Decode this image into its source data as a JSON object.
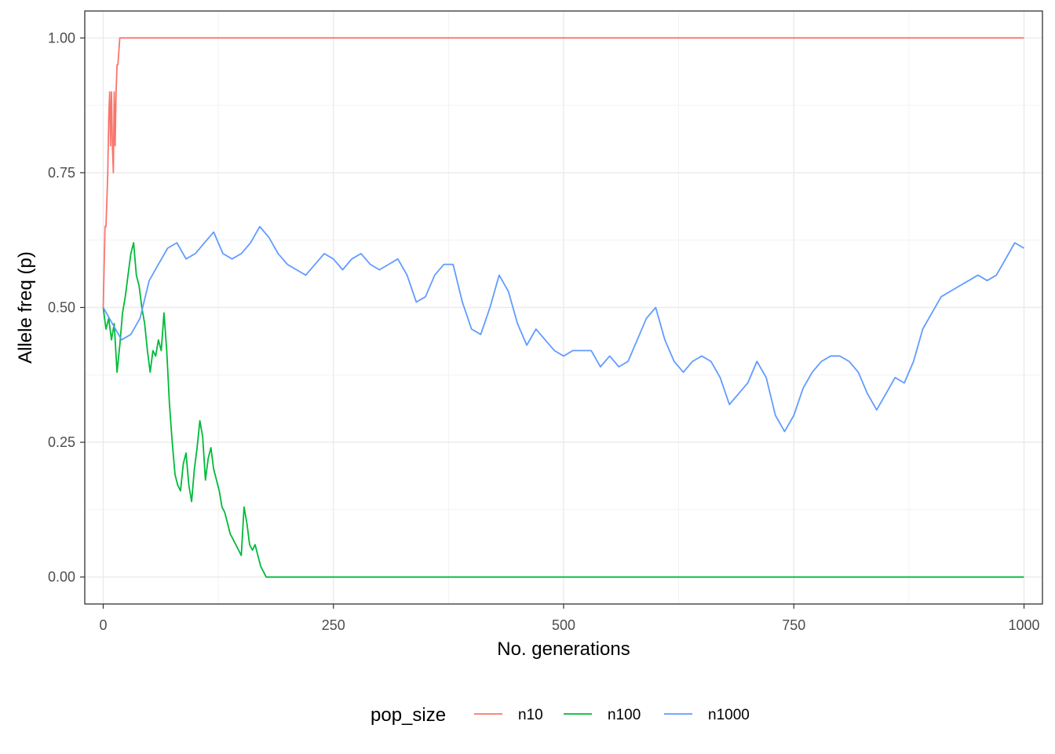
{
  "chart_data": {
    "type": "line",
    "title": "",
    "xlabel": "No. generations",
    "ylabel": "Allele freq (p)",
    "xlim": [
      -20,
      1020
    ],
    "ylim": [
      -0.05,
      1.05
    ],
    "x_ticks": [
      0,
      250,
      500,
      750,
      1000
    ],
    "x_tick_labels": [
      "0",
      "250",
      "500",
      "750",
      "1000"
    ],
    "y_ticks": [
      0,
      0.25,
      0.5,
      0.75,
      1.0
    ],
    "y_tick_labels": [
      "0.00",
      "0.25",
      "0.50",
      "0.75",
      "1.00"
    ],
    "grid": true,
    "legend": {
      "title": "pop_size",
      "position": "bottom"
    },
    "series": [
      {
        "name": "n10",
        "color": "#F8766D",
        "x": [
          0,
          2,
          3,
          4,
          5,
          6,
          7,
          8,
          9,
          10,
          11,
          12,
          13,
          14,
          15,
          16,
          18,
          1000
        ],
        "y": [
          0.5,
          0.65,
          0.65,
          0.7,
          0.75,
          0.85,
          0.9,
          0.8,
          0.9,
          0.8,
          0.75,
          0.9,
          0.8,
          0.9,
          0.95,
          0.95,
          1.0,
          1.0
        ]
      },
      {
        "name": "n100",
        "color": "#00BA38",
        "x": [
          0,
          3,
          6,
          9,
          12,
          15,
          18,
          21,
          24,
          27,
          30,
          33,
          36,
          39,
          42,
          45,
          48,
          51,
          54,
          57,
          60,
          63,
          66,
          69,
          72,
          75,
          78,
          81,
          84,
          87,
          90,
          93,
          96,
          99,
          102,
          105,
          108,
          111,
          114,
          117,
          120,
          123,
          126,
          129,
          132,
          135,
          138,
          141,
          144,
          147,
          150,
          153,
          156,
          159,
          162,
          165,
          168,
          171,
          174,
          177,
          180,
          183,
          1000
        ],
        "y": [
          0.5,
          0.46,
          0.48,
          0.44,
          0.47,
          0.38,
          0.43,
          0.49,
          0.52,
          0.56,
          0.6,
          0.62,
          0.56,
          0.54,
          0.5,
          0.47,
          0.42,
          0.38,
          0.42,
          0.41,
          0.44,
          0.42,
          0.49,
          0.42,
          0.32,
          0.25,
          0.19,
          0.17,
          0.16,
          0.21,
          0.23,
          0.17,
          0.14,
          0.2,
          0.24,
          0.29,
          0.26,
          0.18,
          0.22,
          0.24,
          0.2,
          0.18,
          0.16,
          0.13,
          0.12,
          0.1,
          0.08,
          0.07,
          0.06,
          0.05,
          0.04,
          0.13,
          0.1,
          0.06,
          0.05,
          0.06,
          0.04,
          0.02,
          0.01,
          0.0,
          0.0,
          0.0,
          0.0
        ]
      },
      {
        "name": "n1000",
        "color": "#619CFF",
        "x": [
          0,
          10,
          20,
          30,
          40,
          50,
          60,
          70,
          80,
          90,
          100,
          110,
          120,
          130,
          140,
          150,
          160,
          170,
          180,
          190,
          200,
          210,
          220,
          230,
          240,
          250,
          260,
          270,
          280,
          290,
          300,
          310,
          320,
          330,
          340,
          350,
          360,
          370,
          380,
          390,
          400,
          410,
          420,
          430,
          440,
          450,
          460,
          470,
          480,
          490,
          500,
          510,
          520,
          530,
          540,
          550,
          560,
          570,
          580,
          590,
          600,
          610,
          620,
          630,
          640,
          650,
          660,
          670,
          680,
          690,
          700,
          710,
          720,
          730,
          740,
          750,
          760,
          770,
          780,
          790,
          800,
          810,
          820,
          830,
          840,
          850,
          860,
          870,
          880,
          890,
          900,
          910,
          920,
          930,
          940,
          950,
          960,
          970,
          980,
          990,
          1000
        ],
        "y": [
          0.5,
          0.47,
          0.44,
          0.45,
          0.48,
          0.55,
          0.58,
          0.61,
          0.62,
          0.59,
          0.6,
          0.62,
          0.64,
          0.6,
          0.59,
          0.6,
          0.62,
          0.65,
          0.63,
          0.6,
          0.58,
          0.57,
          0.56,
          0.58,
          0.6,
          0.59,
          0.57,
          0.59,
          0.6,
          0.58,
          0.57,
          0.58,
          0.59,
          0.56,
          0.51,
          0.52,
          0.56,
          0.58,
          0.58,
          0.51,
          0.46,
          0.45,
          0.5,
          0.56,
          0.53,
          0.47,
          0.43,
          0.46,
          0.44,
          0.42,
          0.41,
          0.42,
          0.42,
          0.42,
          0.39,
          0.41,
          0.39,
          0.4,
          0.44,
          0.48,
          0.5,
          0.44,
          0.4,
          0.38,
          0.4,
          0.41,
          0.4,
          0.37,
          0.32,
          0.34,
          0.36,
          0.4,
          0.37,
          0.3,
          0.27,
          0.3,
          0.35,
          0.38,
          0.4,
          0.41,
          0.41,
          0.4,
          0.38,
          0.34,
          0.31,
          0.34,
          0.37,
          0.36,
          0.4,
          0.46,
          0.49,
          0.52,
          0.53,
          0.54,
          0.55,
          0.56,
          0.55,
          0.56,
          0.59,
          0.62,
          0.61
        ]
      }
    ]
  }
}
